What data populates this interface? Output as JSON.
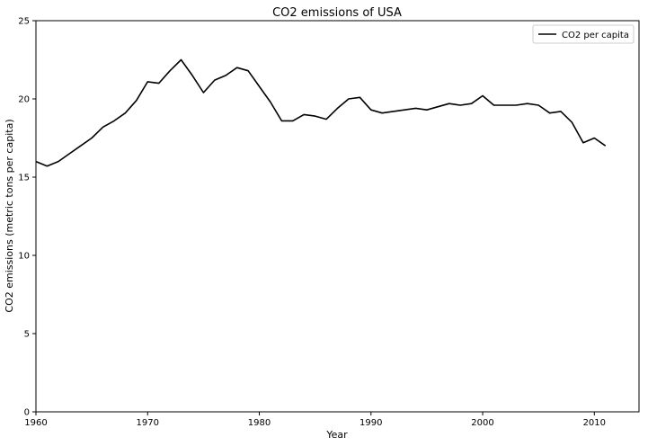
{
  "chart_data": {
    "type": "line",
    "title": "CO2 emissions of USA",
    "xlabel": "Year",
    "ylabel": "CO2 emissions (metric tons per capita)",
    "xlim": [
      1960,
      2014
    ],
    "ylim": [
      0,
      25
    ],
    "xticks": [
      1960,
      1970,
      1980,
      1990,
      2000,
      2010
    ],
    "yticks": [
      0,
      5,
      10,
      15,
      20,
      25
    ],
    "grid": false,
    "legend": {
      "position": "top-right"
    },
    "series": [
      {
        "name": "CO2 per capita",
        "color": "#000000",
        "x": [
          1960,
          1961,
          1962,
          1963,
          1964,
          1965,
          1966,
          1967,
          1968,
          1969,
          1970,
          1971,
          1972,
          1973,
          1974,
          1975,
          1976,
          1977,
          1978,
          1979,
          1980,
          1981,
          1982,
          1983,
          1984,
          1985,
          1986,
          1987,
          1988,
          1989,
          1990,
          1991,
          1992,
          1993,
          1994,
          1995,
          1996,
          1997,
          1998,
          1999,
          2000,
          2001,
          2002,
          2003,
          2004,
          2005,
          2006,
          2007,
          2008,
          2009,
          2010,
          2011
        ],
        "y": [
          16.0,
          15.7,
          16.0,
          16.5,
          17.0,
          17.5,
          18.2,
          18.6,
          19.1,
          19.9,
          21.1,
          21.0,
          21.8,
          22.5,
          21.5,
          20.4,
          21.2,
          21.5,
          22.0,
          21.8,
          20.8,
          19.8,
          18.6,
          18.6,
          19.0,
          18.9,
          18.7,
          19.4,
          20.0,
          20.1,
          19.3,
          19.1,
          19.2,
          19.3,
          19.4,
          19.3,
          19.5,
          19.7,
          19.6,
          19.7,
          20.2,
          19.6,
          19.6,
          19.6,
          19.7,
          19.6,
          19.1,
          19.2,
          18.5,
          17.2,
          17.5,
          17.0
        ]
      }
    ]
  }
}
